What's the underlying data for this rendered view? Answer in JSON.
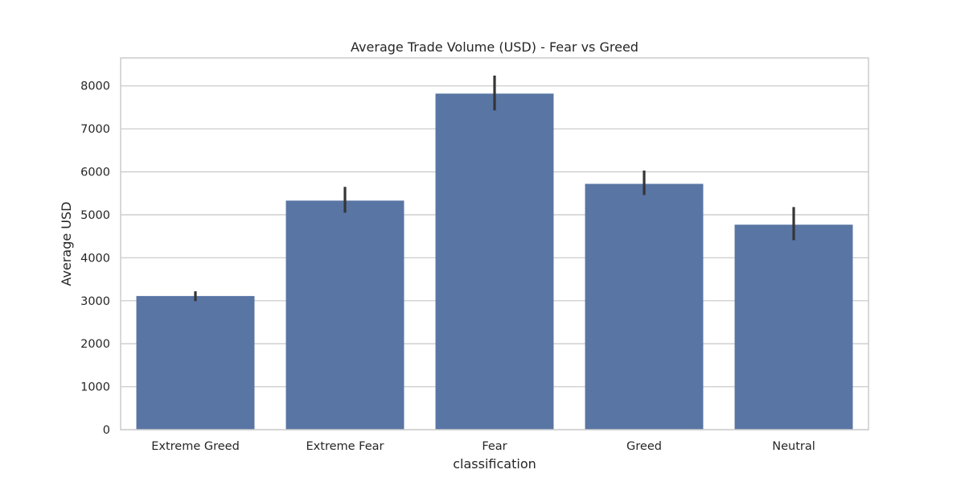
{
  "chart_data": {
    "type": "bar",
    "title": "Average Trade Volume (USD) - Fear vs Greed",
    "xlabel": "classification",
    "ylabel": "Average USD",
    "categories": [
      "Extreme Greed",
      "Extreme Fear",
      "Fear",
      "Greed",
      "Neutral"
    ],
    "values": [
      3110,
      5330,
      7820,
      5720,
      4770
    ],
    "error_bars": [
      {
        "low": 2990,
        "high": 3220
      },
      {
        "low": 5050,
        "high": 5650
      },
      {
        "low": 7430,
        "high": 8240
      },
      {
        "low": 5460,
        "high": 6030
      },
      {
        "low": 4410,
        "high": 5180
      }
    ],
    "ylim": [
      0,
      8650
    ],
    "yticks": [
      0,
      1000,
      2000,
      3000,
      4000,
      5000,
      6000,
      7000,
      8000
    ],
    "grid": true,
    "legend": "none",
    "colors": {
      "bar": "#5975a4",
      "error_bar": "#353535",
      "grid": "#cccccc",
      "axes_edge": "#cccccc",
      "background": "#ffffff"
    }
  }
}
